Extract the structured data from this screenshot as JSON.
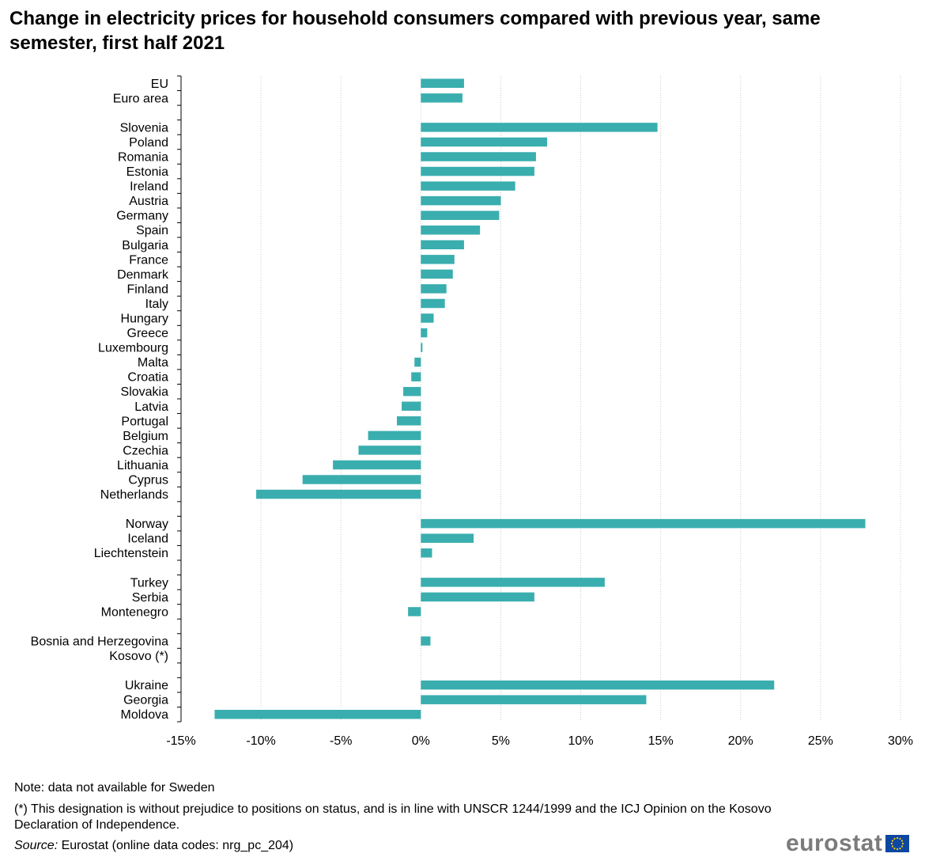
{
  "title": "Change in electricity prices for household consumers compared with previous year, same semester, first half 2021",
  "colors": {
    "bar": "#3aaeae",
    "grid": "#c8c8c8",
    "axis": "#000000"
  },
  "chart_data": {
    "type": "bar",
    "orientation": "horizontal",
    "title": "Change in electricity prices for household consumers compared with previous year, same semester, first half 2021",
    "xlabel": "",
    "ylabel": "",
    "xlim": [
      -15,
      30
    ],
    "xticks": [
      -15,
      -10,
      -5,
      0,
      5,
      10,
      15,
      20,
      25,
      30
    ],
    "xtick_labels": [
      "-15%",
      "-10%",
      "-5%",
      "0%",
      "5%",
      "10%",
      "15%",
      "20%",
      "25%",
      "30%"
    ],
    "grid": "vertical",
    "groups": [
      {
        "categories": [
          "EU",
          "Euro area"
        ],
        "values": [
          2.7,
          2.6
        ]
      },
      {
        "categories": [
          "Slovenia",
          "Poland",
          "Romania",
          "Estonia",
          "Ireland",
          "Austria",
          "Germany",
          "Spain",
          "Bulgaria",
          "France",
          "Denmark",
          "Finland",
          "Italy",
          "Hungary",
          "Greece",
          "Luxembourg",
          "Malta",
          "Croatia",
          "Slovakia",
          "Latvia",
          "Portugal",
          "Belgium",
          "Czechia",
          "Lithuania",
          "Cyprus",
          "Netherlands"
        ],
        "values": [
          14.8,
          7.9,
          7.2,
          7.1,
          5.9,
          5.0,
          4.9,
          3.7,
          2.7,
          2.1,
          2.0,
          1.6,
          1.5,
          0.8,
          0.4,
          0.1,
          -0.4,
          -0.6,
          -1.1,
          -1.2,
          -1.5,
          -3.3,
          -3.9,
          -5.5,
          -7.4,
          -10.3
        ]
      },
      {
        "categories": [
          "Norway",
          "Iceland",
          "Liechtenstein"
        ],
        "values": [
          27.8,
          3.3,
          0.7
        ]
      },
      {
        "categories": [
          "Turkey",
          "Serbia",
          "Montenegro"
        ],
        "values": [
          11.5,
          7.1,
          -0.8
        ]
      },
      {
        "categories": [
          "Bosnia and Herzegovina",
          "Kosovo (*)"
        ],
        "values": [
          0.6,
          null
        ]
      },
      {
        "categories": [
          "Ukraine",
          "Georgia",
          "Moldova"
        ],
        "values": [
          22.1,
          14.1,
          -12.9
        ]
      }
    ]
  },
  "footer": {
    "note1": "Note: data not available for Sweden",
    "note2": "(*) This designation is without prejudice to positions on status, and is in line with UNSCR 1244/1999 and the ICJ Opinion on the Kosovo Declaration of Independence.",
    "source_label": "Source:",
    "source_text": " Eurostat (online data codes: nrg_pc_204)"
  },
  "logo": {
    "text": "eurostat"
  }
}
